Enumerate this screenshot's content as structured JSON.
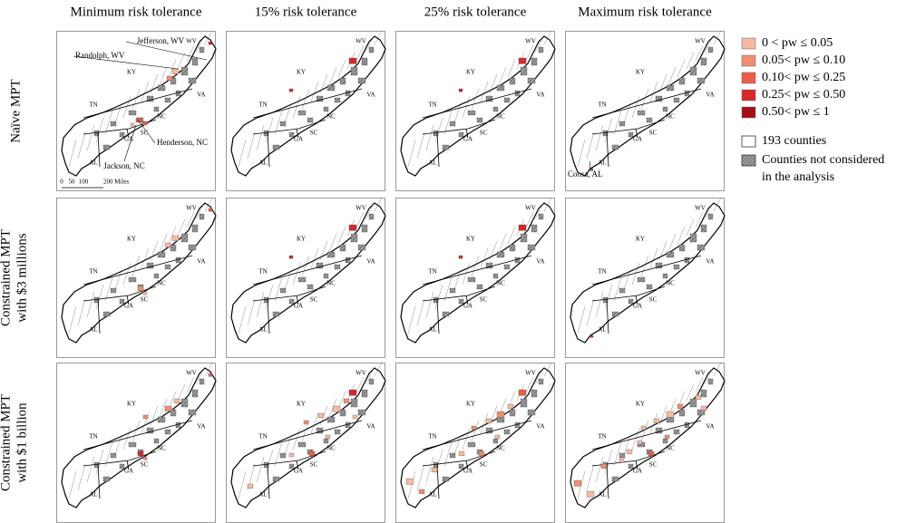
{
  "columns": [
    "Minimum risk tolerance",
    "15% risk tolerance",
    "25% risk tolerance",
    "Maximum risk tolerance"
  ],
  "rows": [
    {
      "lines": [
        "Naïve MPT"
      ]
    },
    {
      "lines": [
        "Constrained MPT",
        "with $3 millions"
      ]
    },
    {
      "lines": [
        "Constrained MPT",
        "with $1 billion"
      ]
    }
  ],
  "state_labels": [
    "WV",
    "KY",
    "VA",
    "TN",
    "NC",
    "SC",
    "GA",
    "AL"
  ],
  "annotations": [
    "Jefferson, WV",
    "Randolph, WV",
    "Henderson, NC",
    "Jackson, NC",
    "Coosa, AL"
  ],
  "scale_bar": [
    "0",
    "50",
    "100",
    "200 Miles"
  ],
  "legend": {
    "items": [
      {
        "label": "0 < pw ≤ 0.05",
        "color": "#f6b9a2"
      },
      {
        "label": "0.05< pw ≤ 0.10",
        "color": "#f18e72"
      },
      {
        "label": "0.10< pw ≤ 0.25",
        "color": "#ec5d48"
      },
      {
        "label": "0.25< pw ≤ 0.50",
        "color": "#d9282a"
      },
      {
        "label": "0.50< pw ≤ 1",
        "color": "#a50f15"
      }
    ],
    "counties": "193 counties",
    "not_considered": [
      "Counties not considered",
      "in the analysis"
    ]
  }
}
